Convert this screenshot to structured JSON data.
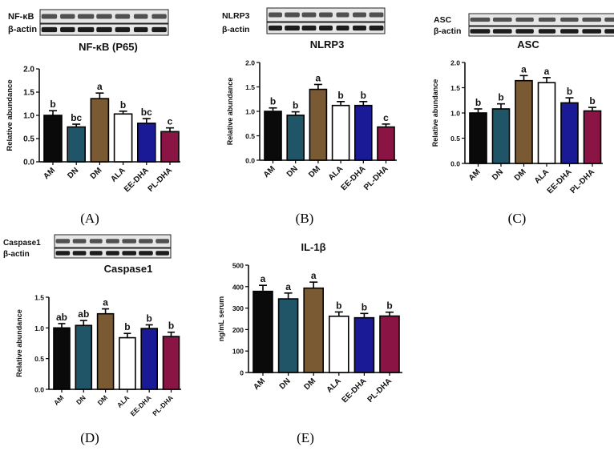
{
  "figure": {
    "panel_letters": [
      "A",
      "B",
      "C",
      "D",
      "E"
    ]
  },
  "colors": {
    "AM": "#0a0a0a",
    "DN": "#1f5566",
    "DM": "#7a5a33",
    "ALA": "#ffffff",
    "EE-DHA": "#1a1a96",
    "PL-DHA": "#8a1544"
  },
  "chart_data": [
    {
      "panel": "A",
      "type": "bar",
      "title": "NF-κB (P65)",
      "blot_labels": [
        "NF-κB",
        "β-actin"
      ],
      "xlabel": "",
      "ylabel": "Relative abundance",
      "categories": [
        "AM",
        "DN",
        "DM",
        "ALA",
        "EE-DHA",
        "PL-DHA"
      ],
      "values": [
        1.0,
        0.75,
        1.36,
        1.03,
        0.83,
        0.65
      ],
      "errors": [
        0.1,
        0.06,
        0.12,
        0.06,
        0.1,
        0.08
      ],
      "significance": [
        "b",
        "bc",
        "a",
        "b",
        "bc",
        "c"
      ],
      "ylim": [
        0,
        2.0
      ],
      "yticks": [
        "0.0",
        "0.5",
        "1.0",
        "1.5",
        "2.0"
      ],
      "grid": false
    },
    {
      "panel": "B",
      "type": "bar",
      "title": "NLRP3",
      "blot_labels": [
        "NLRP3",
        "β-actin"
      ],
      "xlabel": "",
      "ylabel": "Relative abundance",
      "categories": [
        "AM",
        "DN",
        "DM",
        "ALA",
        "EE-DHA",
        "PL-DHA"
      ],
      "values": [
        1.0,
        0.92,
        1.45,
        1.12,
        1.12,
        0.68
      ],
      "errors": [
        0.07,
        0.07,
        0.1,
        0.08,
        0.08,
        0.06
      ],
      "significance": [
        "b",
        "b",
        "a",
        "b",
        "b",
        "c"
      ],
      "ylim": [
        0,
        2.0
      ],
      "yticks": [
        "0.0",
        "0.5",
        "1.0",
        "1.5",
        "2.0"
      ],
      "grid": false
    },
    {
      "panel": "C",
      "type": "bar",
      "title": "ASC",
      "blot_labels": [
        "ASC",
        "β-actin"
      ],
      "xlabel": "",
      "ylabel": "Relative abundance",
      "categories": [
        "AM",
        "DN",
        "DM",
        "ALA",
        "EE-DHA",
        "PL-DHA"
      ],
      "values": [
        1.0,
        1.08,
        1.64,
        1.6,
        1.2,
        1.04
      ],
      "errors": [
        0.08,
        0.1,
        0.1,
        0.1,
        0.1,
        0.07
      ],
      "significance": [
        "b",
        "b",
        "a",
        "a",
        "b",
        "b"
      ],
      "ylim": [
        0,
        2.0
      ],
      "yticks": [
        "0.0",
        "0.5",
        "1.0",
        "1.5",
        "2.0"
      ],
      "grid": false
    },
    {
      "panel": "D",
      "type": "bar",
      "title": "Caspase1",
      "blot_labels": [
        "Caspase1",
        "β-actin"
      ],
      "xlabel": "",
      "ylabel": "Relative abundance",
      "categories": [
        "AM",
        "DN",
        "DM",
        "ALA",
        "EE-DHA",
        "PL-DHA"
      ],
      "values": [
        1.0,
        1.04,
        1.23,
        0.84,
        0.99,
        0.86
      ],
      "errors": [
        0.07,
        0.08,
        0.08,
        0.07,
        0.06,
        0.07
      ],
      "significance": [
        "ab",
        "ab",
        "a",
        "b",
        "b",
        "b"
      ],
      "ylim": [
        0,
        1.5
      ],
      "yticks": [
        "0.0",
        "0.5",
        "1.0",
        "1.5"
      ],
      "grid": false
    },
    {
      "panel": "E",
      "type": "bar",
      "title": "IL-1β",
      "blot_labels": [],
      "xlabel": "",
      "ylabel": "ng/mL serum",
      "categories": [
        "AM",
        "DN",
        "DM",
        "ALA",
        "EE-DHA",
        "PL-DHA"
      ],
      "values": [
        378,
        343,
        393,
        262,
        255,
        263
      ],
      "errors": [
        28,
        27,
        28,
        20,
        20,
        18
      ],
      "significance": [
        "a",
        "a",
        "a",
        "b",
        "b",
        "b"
      ],
      "ylim": [
        0,
        500
      ],
      "yticks": [
        "0",
        "100",
        "200",
        "300",
        "400",
        "500"
      ],
      "grid": false
    }
  ]
}
